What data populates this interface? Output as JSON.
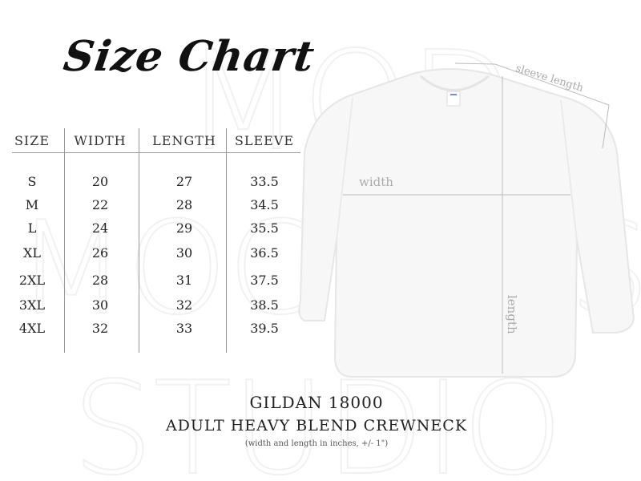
{
  "title": "Size Chart",
  "watermark": [
    "MOD",
    "MOCKUPS",
    "STUDIO"
  ],
  "table": {
    "headers": [
      "SIZE",
      "WIDTH",
      "LENGTH",
      "SLEEVE"
    ],
    "rows": [
      [
        "S",
        "20",
        "27",
        "33.5"
      ],
      [
        "M",
        "22",
        "28",
        "34.5"
      ],
      [
        "L",
        "24",
        "29",
        "35.5"
      ],
      [
        "XL",
        "26",
        "30",
        "36.5"
      ],
      [
        "2XL",
        "28",
        "31",
        "37.5"
      ],
      [
        "3XL",
        "30",
        "32",
        "38.5"
      ],
      [
        "4XL",
        "32",
        "33",
        "39.5"
      ]
    ]
  },
  "guides": {
    "width": "width",
    "length": "length",
    "sleeve": "sleeve length"
  },
  "product": {
    "brand": "GILDAN 18000",
    "name": "ADULT HEAVY BLEND CREWNECK",
    "note": "(width and length in inches, +/- 1\")"
  }
}
